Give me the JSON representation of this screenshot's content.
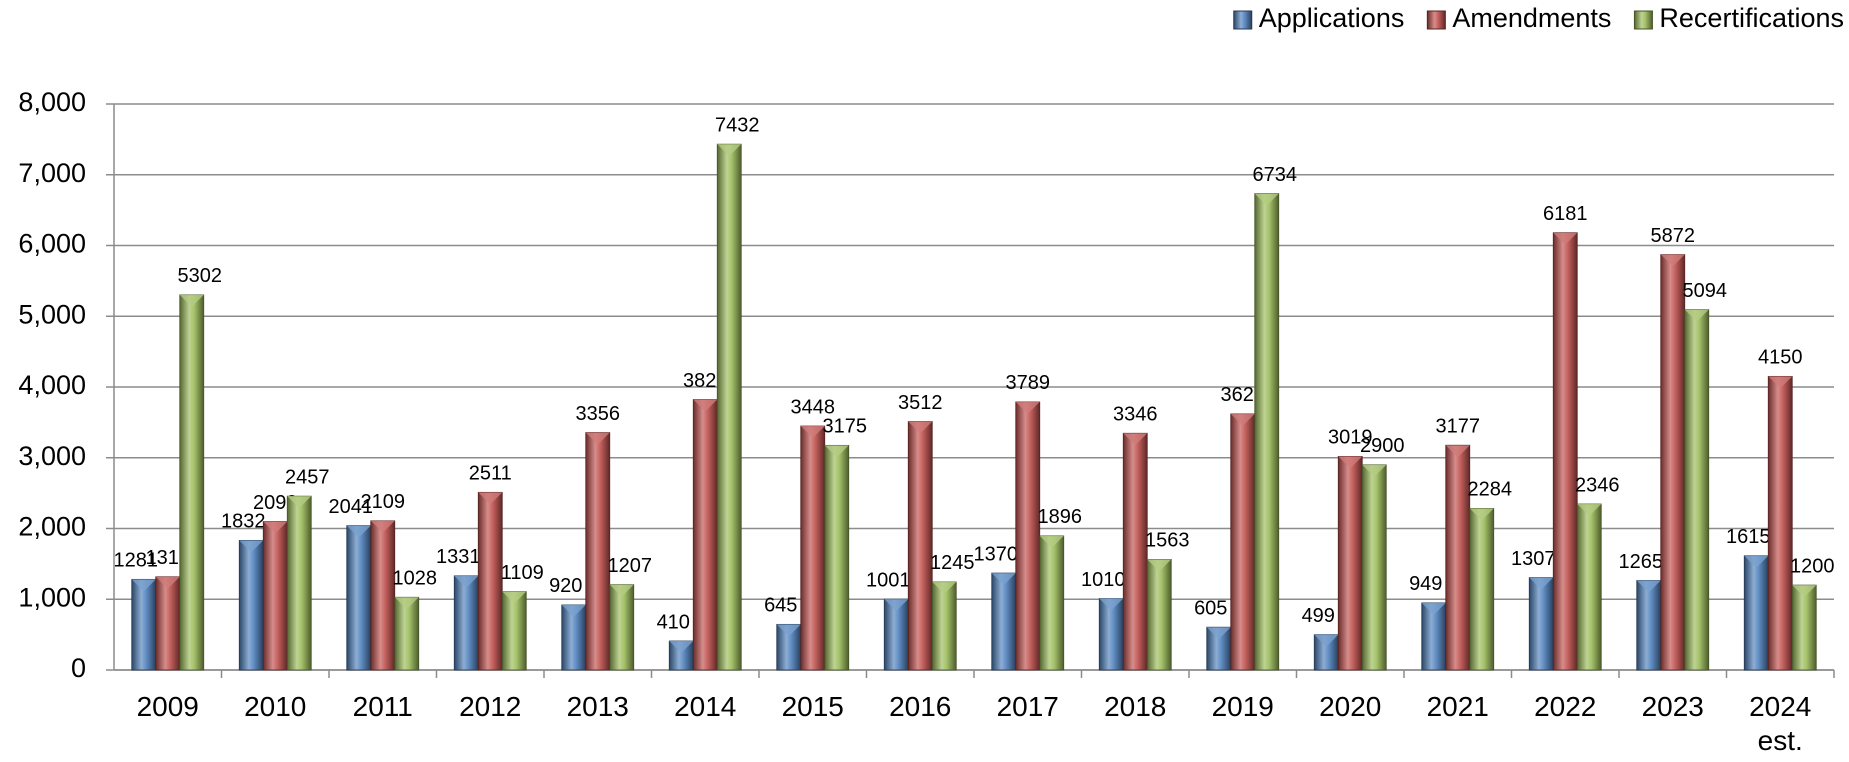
{
  "chart_data": {
    "type": "bar",
    "categories": [
      "2009",
      "2010",
      "2011",
      "2012",
      "2013",
      "2014",
      "2015",
      "2016",
      "2017",
      "2018",
      "2019",
      "2020",
      "2021",
      "2022",
      "2023",
      "2024 est."
    ],
    "series": [
      {
        "name": "Applications",
        "color": "#4f81bd",
        "values": [
          1281,
          1832,
          2041,
          1331,
          920,
          410,
          645,
          1001,
          1370,
          1010,
          605,
          499,
          949,
          1307,
          1265,
          1615
        ]
      },
      {
        "name": "Amendments",
        "color": "#c0504d",
        "values": [
          1318,
          2099,
          2109,
          2511,
          3356,
          3823,
          3448,
          3512,
          3789,
          3346,
          3620,
          3019,
          3177,
          6181,
          5872,
          4150
        ]
      },
      {
        "name": "Recertifications",
        "color": "#9bbb59",
        "values": [
          5302,
          2457,
          1028,
          1109,
          1207,
          7432,
          3175,
          1245,
          1896,
          1563,
          6734,
          2900,
          2284,
          2346,
          5094,
          1200
        ]
      }
    ],
    "ylim": [
      0,
      8000
    ],
    "yticks": [
      0,
      {
        "value": 1000,
        "label": "1,000"
      },
      {
        "value": 2000,
        "label": "2,000"
      },
      {
        "value": 3000,
        "label": "3,000"
      },
      {
        "value": 4000,
        "label": "4,000"
      },
      {
        "value": 5000,
        "label": "5,000"
      },
      {
        "value": 6000,
        "label": "6,000"
      },
      {
        "value": 7000,
        "label": "7,000"
      },
      {
        "value": 8000,
        "label": "8,000"
      }
    ],
    "grid": true,
    "legend": "top-right"
  }
}
